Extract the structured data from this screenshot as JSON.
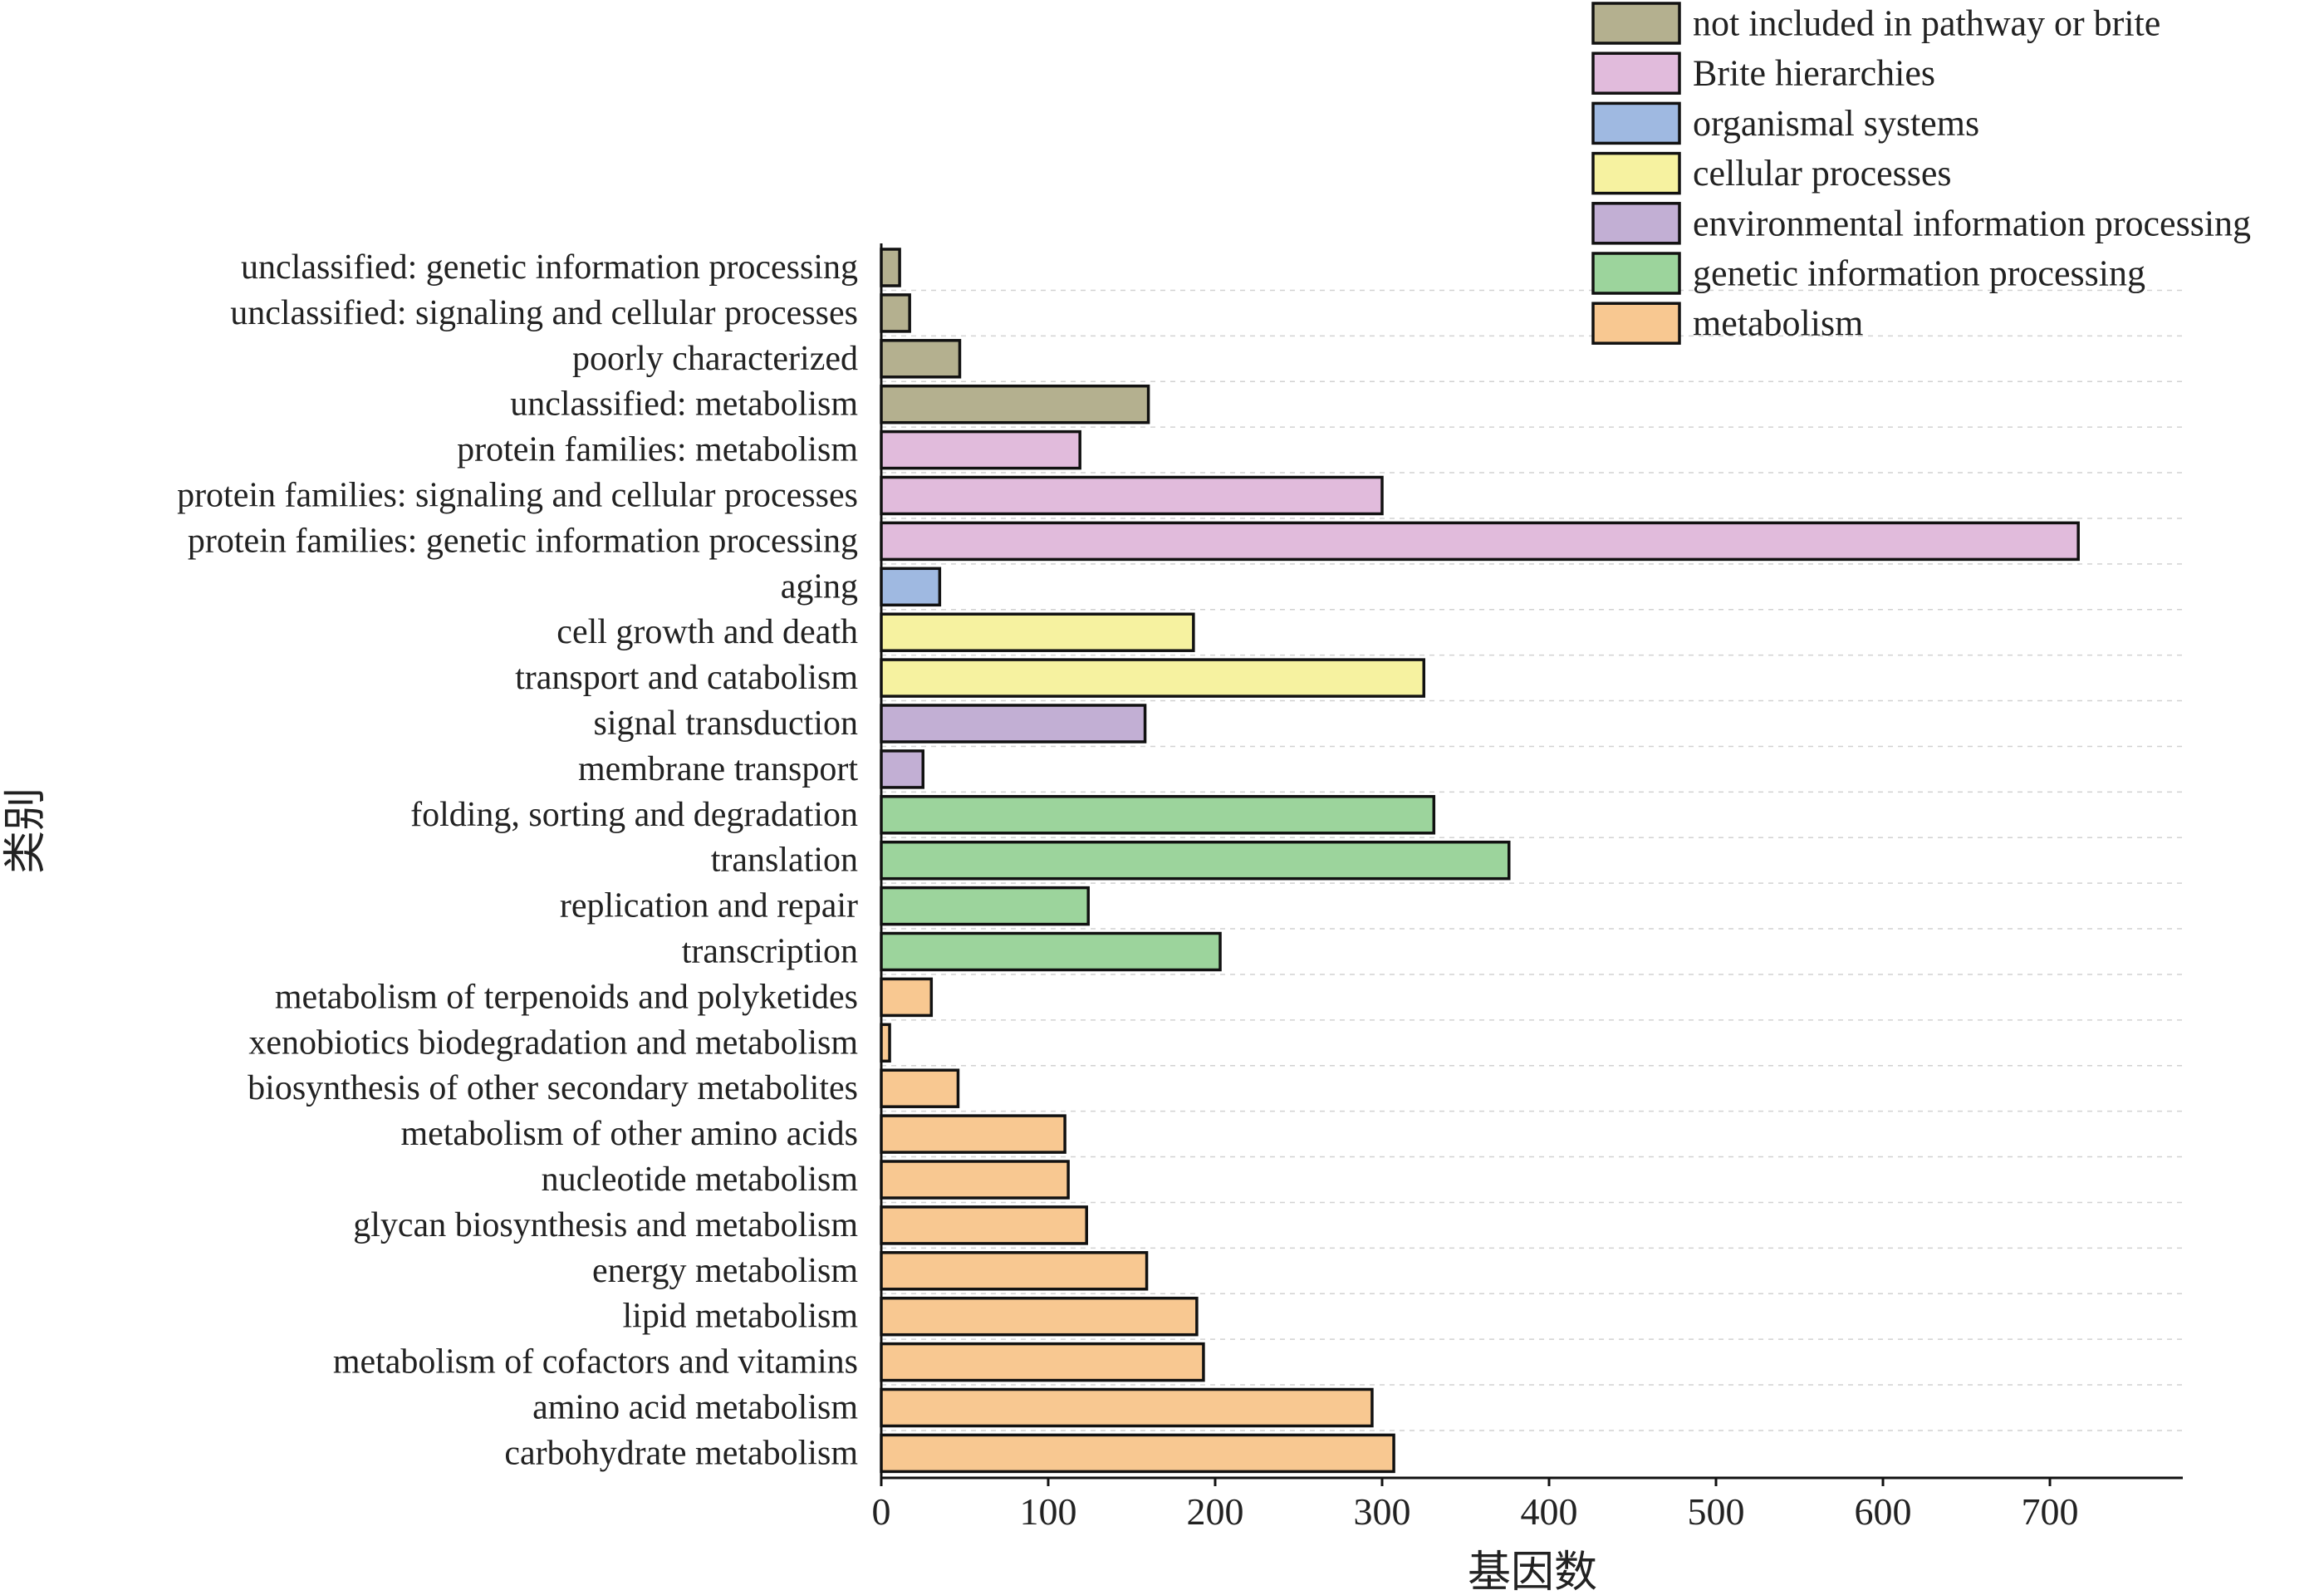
{
  "chart_data": {
    "type": "bar",
    "orientation": "horizontal",
    "xlabel": "基因数",
    "ylabel": "类别",
    "xlim": [
      0,
      780
    ],
    "xticks": [
      0,
      100,
      200,
      300,
      400,
      500,
      600,
      700
    ],
    "grid": true,
    "legend_position": "top-right",
    "groups": [
      {
        "name": "not included in pathway or brite",
        "color": "#b4b08f"
      },
      {
        "name": "Brite hierarchies",
        "color": "#e1bbdc"
      },
      {
        "name": "organismal systems",
        "color": "#9fb9e1"
      },
      {
        "name": "cellular processes",
        "color": "#f6f2a0"
      },
      {
        "name": "environmental information processing",
        "color": "#c2afd4"
      },
      {
        "name": "genetic information processing",
        "color": "#9cd49c"
      },
      {
        "name": "metabolism",
        "color": "#f8c891"
      }
    ],
    "categories": [
      "unclassified: genetic information processing",
      "unclassified: signaling and cellular processes",
      "poorly characterized",
      "unclassified: metabolism",
      "protein families: metabolism",
      "protein families: signaling and cellular processes",
      "protein families: genetic information processing",
      "aging",
      "cell growth and death",
      "transport and catabolism",
      "signal transduction",
      "membrane transport",
      "folding, sorting and degradation",
      "translation",
      "replication and repair",
      "transcription",
      "metabolism of terpenoids and polyketides",
      "xenobiotics biodegradation and metabolism",
      "biosynthesis of other secondary metabolites",
      "metabolism of other amino acids",
      "nucleotide metabolism",
      "glycan biosynthesis and metabolism",
      "energy metabolism",
      "lipid metabolism",
      "metabolism of cofactors and vitamins",
      "amino acid metabolism",
      "carbohydrate metabolism"
    ],
    "values": [
      11,
      17,
      47,
      160,
      119,
      300,
      717,
      35,
      187,
      325,
      158,
      25,
      331,
      376,
      124,
      203,
      30,
      5,
      46,
      110,
      112,
      123,
      159,
      189,
      193,
      294,
      307
    ],
    "group_index": [
      0,
      0,
      0,
      0,
      1,
      1,
      1,
      2,
      3,
      3,
      4,
      4,
      5,
      5,
      5,
      5,
      6,
      6,
      6,
      6,
      6,
      6,
      6,
      6,
      6,
      6,
      6
    ]
  }
}
